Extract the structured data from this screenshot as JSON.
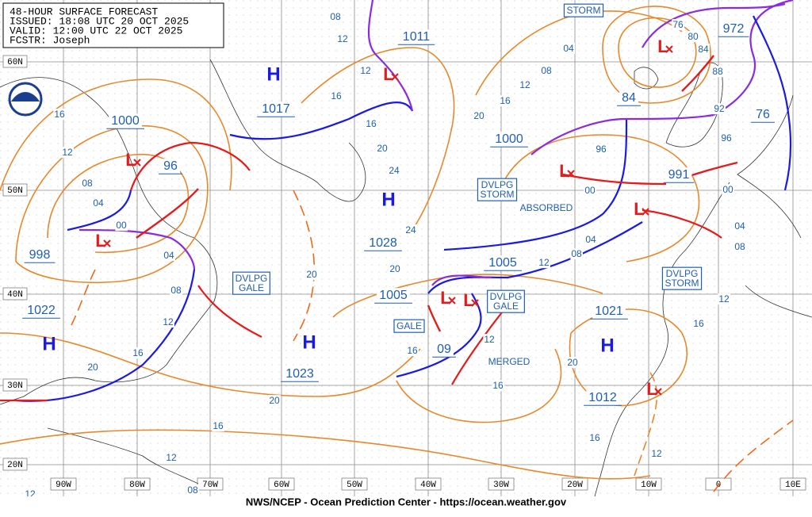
{
  "header": {
    "lines": [
      "48-HOUR SURFACE FORECAST",
      "ISSUED: 18:08 UTC 20 OCT 2025",
      "VALID:  12:00 UTC 22 OCT 2025",
      "FCSTR:  Joseph"
    ]
  },
  "latitude_labels": [
    "60N",
    "50N",
    "40N",
    "30N",
    "20N"
  ],
  "longitude_labels": [
    "90W",
    "80W",
    "70W",
    "60W",
    "50W",
    "40W",
    "30W",
    "20W",
    "10W",
    "0",
    "10E"
  ],
  "pressure_labels": [
    "1011",
    "1017",
    "1000",
    "96",
    "998",
    "1022",
    "1028",
    "1005",
    "1005",
    "1023",
    "09",
    "1021",
    "1012",
    "991",
    "84",
    "972",
    "76",
    "1000"
  ],
  "high_centers": [
    "H",
    "H",
    "H",
    "H",
    "H"
  ],
  "low_centers": [
    "L",
    "L",
    "L",
    "L",
    "L",
    "L",
    "L",
    "L",
    "L"
  ],
  "annotations": [
    "STORM",
    "DVLPG\nSTORM",
    "ABSORBED",
    "DVLPG\nGALE",
    "DVLPG\nGALE",
    "GALE",
    "MERGED",
    "DVLPG\nSTORM"
  ],
  "isobar_labels": [
    "08",
    "12",
    "12",
    "16",
    "16",
    "12",
    "08",
    "04",
    "00",
    "04",
    "08",
    "12",
    "16",
    "20",
    "16",
    "20",
    "24",
    "20",
    "16",
    "12",
    "08",
    "04",
    "24",
    "20",
    "20",
    "20",
    "16",
    "12",
    "16",
    "20",
    "16",
    "12",
    "08",
    "04",
    "00",
    "96",
    "92",
    "88",
    "84",
    "80",
    "76",
    "96",
    "00",
    "04",
    "08",
    "12",
    "16",
    "12",
    "16",
    "12",
    "08",
    "12"
  ],
  "footer": "NWS/NCEP - Ocean Prediction Center - https://ocean.weather.gov"
}
